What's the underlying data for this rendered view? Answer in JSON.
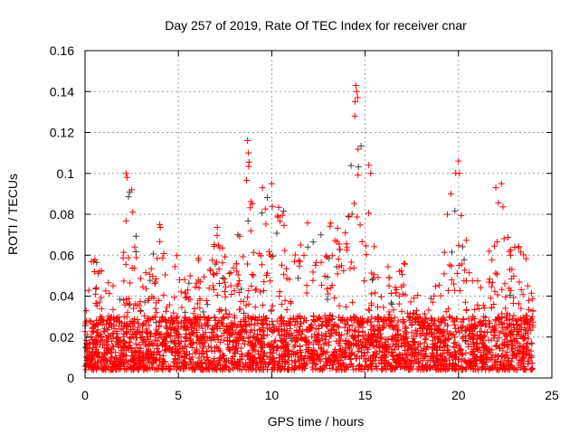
{
  "chart_data": {
    "type": "scatter",
    "title": "Day 257 of 2019, Rate Of TEC Index for receiver cnar",
    "xlabel": "GPS time / hours",
    "ylabel": "ROTI / TECUs",
    "xlim": [
      0,
      25
    ],
    "ylim": [
      0,
      0.16
    ],
    "xticks": [
      "0",
      "5",
      "10",
      "15",
      "20",
      "25"
    ],
    "yticks": [
      "0",
      "0.02",
      "0.04",
      "0.06",
      "0.08",
      "0.1",
      "0.12",
      "0.14",
      "0.16"
    ],
    "grid": true,
    "marker": "+",
    "color": "#ff0000",
    "secondary_color": "#404040",
    "data_time_range": [
      0,
      24
    ],
    "baseline_range": [
      0.004,
      0.03
    ],
    "peak_envelope": {
      "t": [
        0,
        0.5,
        1,
        1.5,
        2,
        2.2,
        2.5,
        3,
        3.5,
        4,
        4.5,
        5,
        5.5,
        6,
        6.5,
        7,
        7.2,
        7.5,
        8,
        8.5,
        8.7,
        9,
        9.5,
        10,
        10.5,
        11,
        12,
        12.5,
        13,
        13.5,
        14,
        14.5,
        15,
        15.5,
        16,
        16.5,
        17,
        17.5,
        18,
        18.5,
        19,
        19.5,
        20,
        20.5,
        21,
        21.5,
        22,
        22.3,
        22.5,
        23,
        23.5,
        24
      ],
      "max": [
        0.06,
        0.062,
        0.055,
        0.045,
        0.05,
        0.1,
        0.09,
        0.05,
        0.055,
        0.075,
        0.07,
        0.06,
        0.05,
        0.06,
        0.05,
        0.07,
        0.085,
        0.07,
        0.065,
        0.085,
        0.116,
        0.08,
        0.09,
        0.09,
        0.09,
        0.06,
        0.078,
        0.075,
        0.075,
        0.08,
        0.075,
        0.143,
        0.1,
        0.065,
        0.06,
        0.05,
        0.058,
        0.05,
        0.035,
        0.04,
        0.05,
        0.09,
        0.106,
        0.065,
        0.05,
        0.055,
        0.09,
        0.095,
        0.075,
        0.07,
        0.065,
        0.05
      ]
    },
    "peak_points": {
      "x": [
        2.2,
        2.25,
        2.5,
        8.7,
        8.75,
        14.5,
        14.55,
        14.6,
        14.45,
        15.2,
        15.3,
        20.0,
        20.05,
        19.6,
        22.3,
        22.0,
        4.0,
        10.0,
        9.5
      ],
      "y": [
        0.1,
        0.098,
        0.092,
        0.116,
        0.11,
        0.143,
        0.14,
        0.137,
        0.128,
        0.104,
        0.1,
        0.106,
        0.1,
        0.09,
        0.095,
        0.093,
        0.075,
        0.095,
        0.093
      ]
    }
  }
}
